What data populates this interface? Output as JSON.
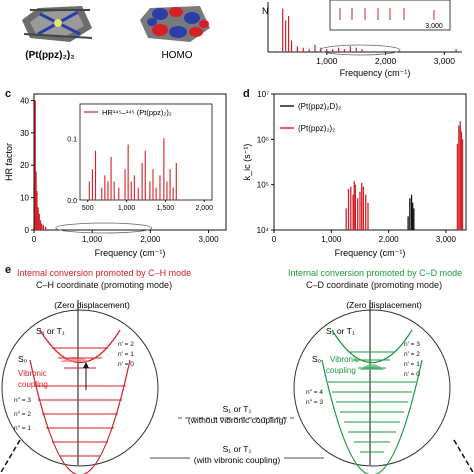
{
  "top": {
    "molecule_label": "(Pt(ppz)₂)₂",
    "homo_label": "HOMO",
    "b_xlabel": "Frequency (cm⁻¹)",
    "b_ylabel_fragment": "N",
    "b_xticks": [
      "1,000",
      "2,000",
      "3,000"
    ],
    "b_inset_xtick": "3,000"
  },
  "panel_c": {
    "letter": "c",
    "ylabel": "HR factor",
    "xlabel": "Frequency (cm⁻¹)",
    "yticks": [
      "0",
      "10",
      "20",
      "30",
      "40"
    ],
    "xticks": [
      "0",
      "1,000",
      "2,000",
      "3,000"
    ],
    "inset_legend": "HR¹⁴⁵–¹⁴⁵ (Pt(ppz)₂)₂",
    "inset_yticks": [
      "0.1",
      "0.0"
    ],
    "inset_xticks": [
      "500",
      "1,000",
      "1,500",
      "2,000"
    ]
  },
  "panel_d": {
    "letter": "d",
    "ylabel": "k_ic (s⁻¹)",
    "xlabel": "Frequency (cm⁻¹)",
    "yticks": [
      "10⁴",
      "10⁵",
      "10⁶",
      "10⁷"
    ],
    "xticks": [
      "0",
      "1,000",
      "2,000",
      "3,000"
    ],
    "legend": [
      "(Pt(ppz)₂D)₂",
      "(Pt(ppz)₂)₂"
    ],
    "colors": {
      "black": "#111111",
      "red": "#d62027"
    }
  },
  "panel_e": {
    "letter": "e",
    "left_title": "Internal conversion promoted by C–H mode",
    "left_sub": "C–H coordinate (promoting mode)",
    "right_title": "Internal conversion promoted by C–D mode",
    "right_sub": "C–D coordinate (promoting mode)",
    "zero_disp": "(Zero displacement)",
    "s1t1": "S₁ or T₁",
    "s0": "S₀",
    "vibronic": "Vibronic coupling",
    "left_levels": [
      "n′₁₋ₕ = 2",
      "n′₁₋ₕ = 1",
      "n′₁₋ₕ = 0",
      "n′₁₋ₕ = 2",
      "n′₁₋ₕ = 1",
      "n′₁₋ₕ = 0"
    ],
    "left_levels_lower": [
      "n″₁₋ₕ = 3",
      "n″₁₋ₕ = 2",
      "n″₁₋ₕ = 1"
    ],
    "right_levels": [
      "n′₁₋ᴅ = 3",
      "n′₁₋ᴅ = 2",
      "n′₁₋ᴅ = 1",
      "n′₁₋ᴅ = 0"
    ],
    "center_top": [
      "S₁ or T₁",
      "(without vibronic coupling)"
    ],
    "center_bottom": [
      "S₁ or T₁",
      "(with vibronic coupling)"
    ],
    "colors": {
      "red": "#d62027",
      "green": "#1a9a3f"
    }
  },
  "chart_data": [
    {
      "type": "bar",
      "panel": "c",
      "ylabel": "HR factor",
      "xlabel": "Frequency (cm⁻¹)",
      "xlim": [
        0,
        3300
      ],
      "ylim": [
        0,
        42
      ],
      "x": [
        20,
        35,
        50,
        70,
        90,
        110,
        130,
        160,
        200
      ],
      "values": [
        40,
        18,
        12,
        7,
        5,
        3,
        2,
        1.5,
        1
      ]
    },
    {
      "type": "bar",
      "panel": "c-inset",
      "xlim": [
        400,
        2100
      ],
      "ylim": [
        0,
        0.12
      ],
      "x": [
        520,
        560,
        600,
        680,
        720,
        760,
        800,
        840,
        900,
        980,
        1020,
        1060,
        1100,
        1150,
        1200,
        1240,
        1300,
        1340,
        1380,
        1430,
        1480,
        1520,
        1560,
        1600,
        1640
      ],
      "values": [
        0.03,
        0.05,
        0.08,
        0.02,
        0.04,
        0.03,
        0.07,
        0.03,
        0.02,
        0.05,
        0.09,
        0.03,
        0.04,
        0.02,
        0.06,
        0.08,
        0.03,
        0.05,
        0.02,
        0.04,
        0.1,
        0.03,
        0.05,
        0.02,
        0.06
      ]
    },
    {
      "type": "bar",
      "panel": "d",
      "ylabel": "k_ic (s⁻¹)",
      "xlabel": "Frequency (cm⁻¹)",
      "xlim": [
        0,
        3350
      ],
      "ylog": true,
      "ylim": [
        10000,
        10000000
      ],
      "series": [
        {
          "name": "(Pt(ppz)₂D)₂",
          "color": "#111111",
          "x": [
            2340,
            2370,
            2400,
            2420,
            2440
          ],
          "values": [
            20000,
            50000,
            60000,
            40000,
            30000
          ]
        },
        {
          "name": "(Pt(ppz)₂)₂",
          "color": "#d62027",
          "x": [
            1260,
            1300,
            1340,
            1380,
            1400,
            1420,
            1460,
            1500,
            1530,
            1560,
            1600,
            1640,
            3200,
            3225,
            3250,
            3270,
            3290
          ],
          "values": [
            30000,
            80000,
            90000,
            60000,
            120000,
            100000,
            50000,
            70000,
            110000,
            90000,
            60000,
            40000,
            800000,
            2000000,
            2500000,
            1500000,
            1000000
          ]
        }
      ]
    },
    {
      "type": "bar",
      "panel": "b",
      "xlim": [
        0,
        3300
      ],
      "x": [
        250,
        300,
        350,
        400,
        500,
        600,
        700,
        800,
        900,
        1000,
        1100,
        1200,
        1300,
        1400,
        1500,
        1600,
        3200
      ],
      "values": [
        30,
        22,
        25,
        8,
        4,
        3,
        2,
        5,
        3,
        2,
        2,
        3,
        2,
        4,
        3,
        2,
        2
      ]
    }
  ]
}
